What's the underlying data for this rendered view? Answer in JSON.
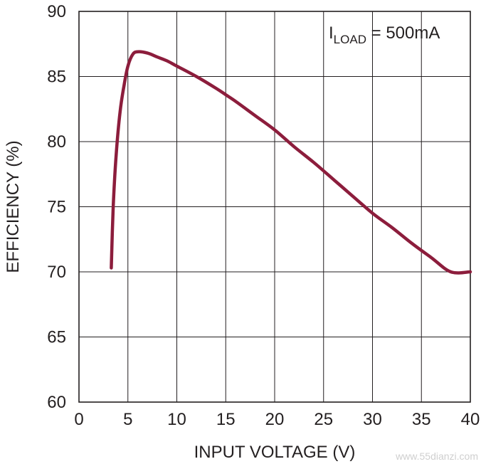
{
  "chart_data": {
    "type": "line",
    "xlabel": "INPUT VOLTAGE (V)",
    "ylabel": "EFFICIENCY (%)",
    "xlim": [
      0,
      40
    ],
    "ylim": [
      60,
      90
    ],
    "xticks": [
      0,
      5,
      10,
      15,
      20,
      25,
      30,
      35,
      40
    ],
    "yticks": [
      60,
      65,
      70,
      75,
      80,
      85,
      90
    ],
    "xtick_labels": [
      "0",
      "5",
      "10",
      "15",
      "20",
      "25",
      "30",
      "35",
      "40"
    ],
    "ytick_labels": [
      "60",
      "65",
      "70",
      "75",
      "80",
      "85",
      "90"
    ],
    "grid": true,
    "annotation": {
      "main": "I",
      "sub": "LOAD",
      "rest": " = 500mA"
    },
    "series": [
      {
        "color": "#8c1d3c",
        "x": [
          3.3,
          3.5,
          3.8,
          4.2,
          4.6,
          5.0,
          5.5,
          6.0,
          7.0,
          8.0,
          9.0,
          10.0,
          12.0,
          14.0,
          15.0,
          16.0,
          18.0,
          20.0,
          22.0,
          24.0,
          26.0,
          28.0,
          30.0,
          32.0,
          34.0,
          36.0,
          38.0,
          40.0
        ],
        "y": [
          70.3,
          75.0,
          79.0,
          82.3,
          84.3,
          85.8,
          86.7,
          86.9,
          86.8,
          86.5,
          86.2,
          85.8,
          85.0,
          84.1,
          83.6,
          83.1,
          82.0,
          80.9,
          79.6,
          78.4,
          77.1,
          75.8,
          74.5,
          73.4,
          72.2,
          71.1,
          70.0,
          70.0
        ]
      }
    ]
  },
  "watermark": "www.55dianzi.com"
}
